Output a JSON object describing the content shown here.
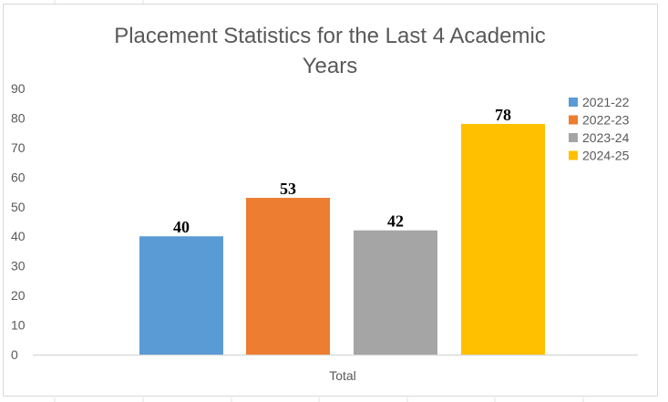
{
  "chart_data": {
    "type": "bar",
    "title_lines": [
      "Placement Statistics for the Last 4 Academic",
      "Years"
    ],
    "title": "Placement Statistics for the Last 4 Academic Years",
    "categories": [
      "Total"
    ],
    "xlabel": "Total",
    "ylabel": "",
    "ylim": [
      0,
      90
    ],
    "yticks": [
      0,
      10,
      20,
      30,
      40,
      50,
      60,
      70,
      80,
      90
    ],
    "grid": false,
    "legend_position": "top-right",
    "series": [
      {
        "name": "2021-22",
        "values": [
          40
        ],
        "color": "#5B9BD5"
      },
      {
        "name": "2022-23",
        "values": [
          53
        ],
        "color": "#ED7D31"
      },
      {
        "name": "2023-24",
        "values": [
          42
        ],
        "color": "#A5A5A5"
      },
      {
        "name": "2024-25",
        "values": [
          78
        ],
        "color": "#FFC000"
      }
    ]
  }
}
